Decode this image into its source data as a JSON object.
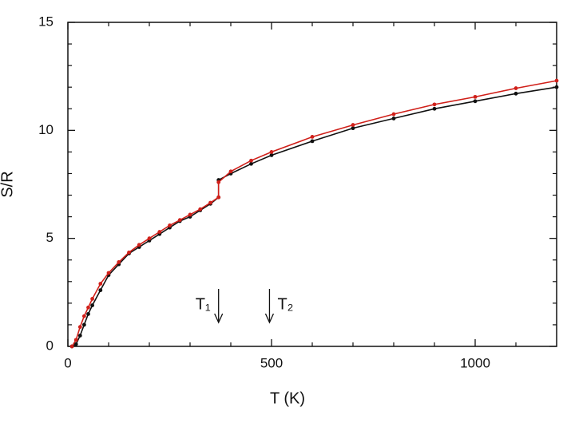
{
  "chart_data": {
    "type": "line",
    "xlabel": "T (K)",
    "ylabel": "S/R",
    "xlim": [
      0,
      1200
    ],
    "ylim": [
      0,
      15
    ],
    "xticks": [
      0,
      500,
      1000
    ],
    "yticks": [
      0,
      5,
      10,
      15
    ],
    "xminorticks": [
      100,
      200,
      300,
      400,
      600,
      700,
      800,
      900,
      1100
    ],
    "yminorticks": [
      1,
      2,
      3,
      4,
      6,
      7,
      8,
      9,
      11,
      12,
      13,
      14
    ],
    "series": [
      {
        "name": "black",
        "color": "#111111",
        "x": [
          10,
          20,
          30,
          40,
          50,
          60,
          80,
          100,
          125,
          150,
          175,
          200,
          225,
          250,
          275,
          300,
          325,
          350,
          370,
          370,
          400,
          450,
          500,
          600,
          700,
          800,
          900,
          1000,
          1100,
          1200
        ],
        "values": [
          0,
          0.1,
          0.5,
          1.0,
          1.5,
          1.9,
          2.6,
          3.3,
          3.8,
          4.3,
          4.6,
          4.9,
          5.2,
          5.5,
          5.8,
          6.0,
          6.3,
          6.6,
          6.9,
          7.7,
          8.0,
          8.45,
          8.85,
          9.5,
          10.1,
          10.55,
          11.0,
          11.35,
          11.7,
          12.0
        ]
      },
      {
        "name": "red",
        "color": "#d0201a",
        "x": [
          10,
          20,
          30,
          40,
          50,
          60,
          80,
          100,
          125,
          150,
          175,
          200,
          225,
          250,
          275,
          300,
          325,
          350,
          370,
          370,
          400,
          450,
          500,
          600,
          700,
          800,
          900,
          1000,
          1100,
          1200
        ],
        "values": [
          0,
          0.3,
          0.9,
          1.4,
          1.8,
          2.2,
          2.9,
          3.4,
          3.9,
          4.35,
          4.7,
          5.0,
          5.3,
          5.6,
          5.85,
          6.1,
          6.35,
          6.65,
          6.9,
          7.6,
          8.1,
          8.6,
          9.0,
          9.7,
          10.25,
          10.75,
          11.2,
          11.55,
          11.95,
          12.3
        ]
      }
    ],
    "annotations": [
      {
        "text": "T₁",
        "x": 370,
        "side": "left"
      },
      {
        "text": "T₂",
        "x": 495,
        "side": "right"
      }
    ]
  }
}
